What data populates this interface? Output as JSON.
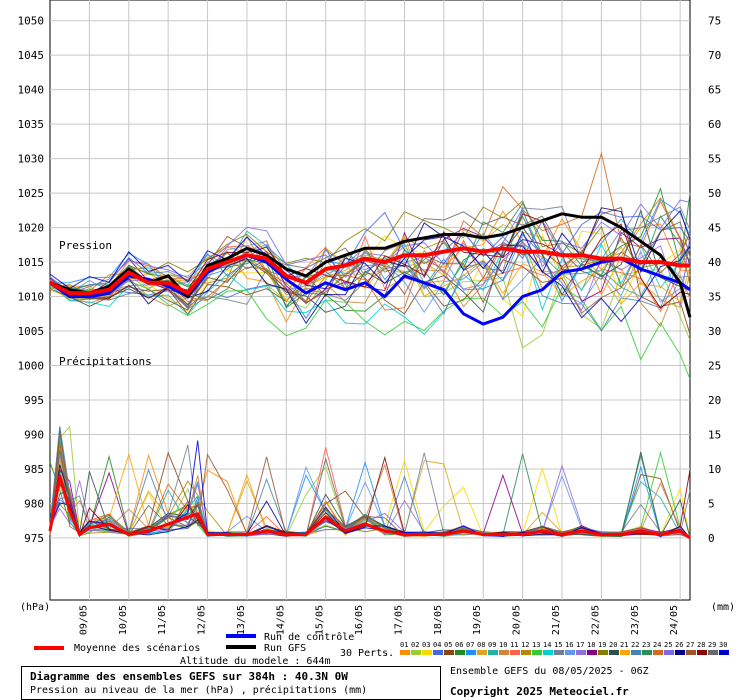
{
  "chart_data": {
    "type": "line",
    "labels": {
      "pressure_section": "Pression",
      "precip_section": "Précipitations",
      "left_unit": "(hPa)",
      "right_unit": "(mm)"
    },
    "left_axis": {
      "ticks": [
        1050,
        1045,
        1040,
        1035,
        1030,
        1025,
        1020,
        1015,
        1010,
        1005,
        1000,
        995,
        990,
        985,
        980,
        975
      ],
      "range": [
        966,
        1053
      ]
    },
    "right_axis": {
      "ticks": [
        75,
        70,
        65,
        60,
        55,
        50,
        45,
        40,
        35,
        30,
        25,
        20,
        15,
        10,
        5,
        0
      ]
    },
    "x_axis": {
      "range_days": [
        8.0,
        24.25
      ],
      "date_labels": [
        "09/05",
        "10/05",
        "11/05",
        "12/05",
        "13/05",
        "14/05",
        "15/05",
        "16/05",
        "17/05",
        "18/05",
        "19/05",
        "20/05",
        "21/05",
        "22/05",
        "23/05",
        "24/05"
      ],
      "date_positions": [
        9,
        10,
        11,
        12,
        13,
        14,
        15,
        16,
        17,
        18,
        19,
        20,
        21,
        22,
        23,
        24
      ]
    },
    "series": [
      {
        "name": "Moyenne des scénarios",
        "color": "#ff0000",
        "x": [
          8.0,
          8.5,
          9.0,
          9.5,
          10.0,
          10.5,
          11.0,
          11.5,
          12.0,
          12.5,
          13.0,
          13.5,
          14.0,
          14.5,
          15.0,
          15.5,
          16.0,
          16.5,
          17.0,
          17.5,
          18.0,
          18.5,
          19.0,
          19.5,
          20.0,
          20.5,
          21.0,
          21.5,
          22.0,
          22.5,
          23.0,
          23.5,
          24.0,
          24.25
        ],
        "y": [
          1012,
          1010.5,
          1010.5,
          1011,
          1013.5,
          1012,
          1012,
          1010.5,
          1014,
          1015,
          1016,
          1015.5,
          1013,
          1012,
          1014,
          1014.5,
          1015.5,
          1015,
          1016,
          1016,
          1016.5,
          1017,
          1016.5,
          1017,
          1016.5,
          1016.5,
          1016,
          1016,
          1015.5,
          1015.5,
          1015,
          1015,
          1014.5,
          1014.5
        ]
      },
      {
        "name": "Run de contrôle",
        "color": "#0000ff",
        "x": [
          8.0,
          8.5,
          9.0,
          9.5,
          10.0,
          10.5,
          11.0,
          11.5,
          12.0,
          12.5,
          13.0,
          13.5,
          14.0,
          14.5,
          15.0,
          15.5,
          16.0,
          16.5,
          17.0,
          17.5,
          18.0,
          18.5,
          19.0,
          19.5,
          20.0,
          20.5,
          21.0,
          21.5,
          22.0,
          22.5,
          23.0,
          23.5,
          24.0,
          24.25
        ],
        "y": [
          1012,
          1010,
          1010,
          1010.5,
          1013,
          1012.5,
          1011.5,
          1010,
          1013.5,
          1015,
          1016,
          1015,
          1012.5,
          1010.5,
          1012,
          1011,
          1012,
          1010,
          1013,
          1012,
          1011,
          1007.5,
          1006,
          1007,
          1010,
          1011,
          1013.5,
          1014,
          1015,
          1015.5,
          1014,
          1013,
          1012,
          1011
        ]
      },
      {
        "name": "Run GFS",
        "color": "#000000",
        "x": [
          8.0,
          8.5,
          9.0,
          9.5,
          10.0,
          10.5,
          11.0,
          11.5,
          12.0,
          12.5,
          13.0,
          13.5,
          14.0,
          14.5,
          15.0,
          15.5,
          16.0,
          16.5,
          17.0,
          17.5,
          18.0,
          18.5,
          19.0,
          19.5,
          20.0,
          20.5,
          21.0,
          21.5,
          22.0,
          22.5,
          23.0,
          23.5,
          24.0,
          24.25
        ],
        "y": [
          1012,
          1011,
          1010.5,
          1011.5,
          1014,
          1012,
          1013,
          1010,
          1014.5,
          1015.5,
          1017,
          1016,
          1014,
          1013,
          1015,
          1016,
          1017,
          1017,
          1018,
          1018.5,
          1019,
          1019,
          1018.5,
          1019,
          1020,
          1021,
          1022,
          1021.5,
          1021.5,
          1020,
          1018,
          1016,
          1012,
          1007
        ]
      },
      {
        "name": "Précipitations moyenne",
        "color": "#ff0000",
        "x": [
          8.0,
          8.25,
          8.5,
          8.75,
          9.0,
          9.5,
          10.0,
          10.5,
          11.0,
          11.5,
          11.75,
          12.0,
          12.5,
          13.0,
          13.5,
          14.0,
          14.5,
          15.0,
          15.5,
          16.0,
          16.5,
          17.0,
          17.5,
          18.0,
          18.5,
          19.0,
          19.5,
          20.0,
          20.5,
          21.0,
          21.5,
          22.0,
          22.5,
          23.0,
          23.5,
          24.0,
          24.25
        ],
        "y": [
          976,
          984,
          979,
          975.5,
          976.5,
          977,
          975.5,
          976,
          977,
          978,
          978.5,
          975.5,
          975.5,
          975.5,
          976,
          975.5,
          975.5,
          978,
          976,
          977,
          976,
          975.5,
          975.5,
          975.5,
          976,
          975.5,
          975.5,
          975.5,
          976,
          975.5,
          976,
          975.5,
          975.5,
          976,
          975.5,
          976,
          975
        ]
      }
    ],
    "legend": {
      "mean_label": "Moyenne des scénarios",
      "control_label": "Run de contrôle",
      "gfs_label": "Run GFS",
      "perts_label": "30 Perts.",
      "pert_numbers": [
        "01",
        "02",
        "03",
        "04",
        "05",
        "06",
        "07",
        "08",
        "09",
        "10",
        "11",
        "12",
        "13",
        "14",
        "15",
        "16",
        "17",
        "18",
        "19",
        "20",
        "21",
        "22",
        "23",
        "24",
        "25",
        "26",
        "27",
        "28",
        "29",
        "30"
      ],
      "pert_colors": [
        "#ff8c00",
        "#9acd32",
        "#ffd700",
        "#4169e1",
        "#8b4513",
        "#228b22",
        "#1e90ff",
        "#daa520",
        "#20b2aa",
        "#cd853f",
        "#ff6347",
        "#b8860b",
        "#32cd32",
        "#00ced1",
        "#708090",
        "#6495ed",
        "#9370db",
        "#8b008b",
        "#808000",
        "#2f4f4f",
        "#ffa500",
        "#4682b4",
        "#2e8b57",
        "#d2691e",
        "#7b68ee",
        "#00008b",
        "#a0522d",
        "#8b0000",
        "#696969",
        "#0000cd"
      ]
    },
    "model_altitude": "Altitude du modele : 644m"
  },
  "info_box": {
    "title": "Diagramme des ensembles GEFS sur 384h : 40.3N 0W",
    "subtitle": "Pression au niveau de la mer (hPa) , précipitations (mm)"
  },
  "run_info": "Ensemble GEFS du 08/05/2025 - 06Z",
  "copyright": "Copyright 2025 Meteociel.fr"
}
